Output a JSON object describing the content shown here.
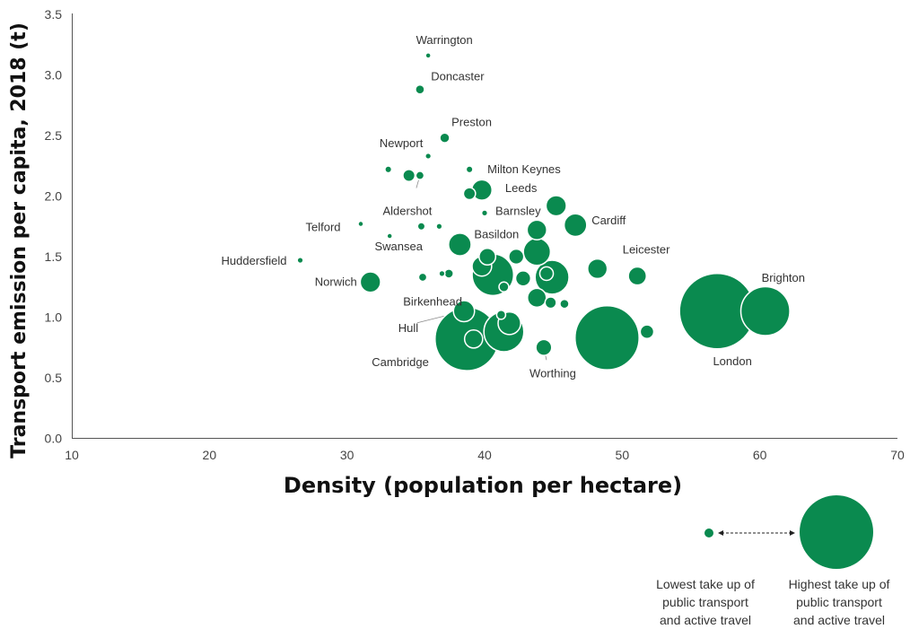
{
  "chart_data": {
    "type": "scatter",
    "title": "",
    "xlabel": "Density (population per hectare)",
    "ylabel": "Transport emission per capita, 2018 (t)",
    "xlim": [
      10,
      70
    ],
    "ylim": [
      0,
      3.5
    ],
    "x_ticks": [
      "10",
      "20",
      "30",
      "40",
      "50",
      "60",
      "70"
    ],
    "y_ticks": [
      "0.0",
      "0.5",
      "1.0",
      "1.5",
      "2.0",
      "2.5",
      "3.0",
      "3.5"
    ],
    "grid": false,
    "bubble_color": "#0a8a4f",
    "size_meaning": "take up of public transport and active travel (relative)",
    "points": [
      {
        "label": "Warrington",
        "x": 35.9,
        "y": 3.16,
        "size": 0.05
      },
      {
        "label": "Doncaster",
        "x": 35.3,
        "y": 2.88,
        "size": 0.12
      },
      {
        "label": "Preston",
        "x": 37.1,
        "y": 2.48,
        "size": 0.13
      },
      {
        "label": "Newport",
        "x": 35.9,
        "y": 2.33,
        "size": 0.08
      },
      {
        "label": "",
        "x": 33.0,
        "y": 2.22,
        "size": 0.09
      },
      {
        "label": "",
        "x": 34.5,
        "y": 2.17,
        "size": 0.16
      },
      {
        "label": "Aldershot",
        "x": 35.3,
        "y": 2.17,
        "size": 0.11
      },
      {
        "label": "Milton Keynes",
        "x": 38.9,
        "y": 2.22,
        "size": 0.09
      },
      {
        "label": "",
        "x": 38.9,
        "y": 2.02,
        "size": 0.16
      },
      {
        "label": "Leeds",
        "x": 39.8,
        "y": 2.05,
        "size": 0.27
      },
      {
        "label": "Barnsley",
        "x": 40.0,
        "y": 1.86,
        "size": 0.08
      },
      {
        "label": "",
        "x": 45.2,
        "y": 1.92,
        "size": 0.27
      },
      {
        "label": "Cardiff",
        "x": 46.6,
        "y": 1.76,
        "size": 0.3
      },
      {
        "label": "Telford",
        "x": 31.0,
        "y": 1.77,
        "size": 0.04
      },
      {
        "label": "Swansea",
        "x": 33.1,
        "y": 1.67,
        "size": 0.05
      },
      {
        "label": "",
        "x": 35.4,
        "y": 1.75,
        "size": 0.1
      },
      {
        "label": "",
        "x": 36.7,
        "y": 1.75,
        "size": 0.08
      },
      {
        "label": "Basildon",
        "x": 38.2,
        "y": 1.6,
        "size": 0.3
      },
      {
        "label": "",
        "x": 43.8,
        "y": 1.72,
        "size": 0.26
      },
      {
        "label": "",
        "x": 43.8,
        "y": 1.54,
        "size": 0.36
      },
      {
        "label": "",
        "x": 40.2,
        "y": 1.5,
        "size": 0.22
      },
      {
        "label": "",
        "x": 42.3,
        "y": 1.5,
        "size": 0.2
      },
      {
        "label": "",
        "x": 44.9,
        "y": 1.33,
        "size": 0.45
      },
      {
        "label": "Leicester",
        "x": 48.2,
        "y": 1.4,
        "size": 0.26
      },
      {
        "label": "",
        "x": 51.1,
        "y": 1.34,
        "size": 0.24
      },
      {
        "label": "Huddersfield",
        "x": 26.6,
        "y": 1.47,
        "size": 0.08
      },
      {
        "label": "Norwich",
        "x": 31.7,
        "y": 1.29,
        "size": 0.27
      },
      {
        "label": "",
        "x": 35.5,
        "y": 1.33,
        "size": 0.11
      },
      {
        "label": "",
        "x": 36.9,
        "y": 1.36,
        "size": 0.08
      },
      {
        "label": "",
        "x": 37.4,
        "y": 1.36,
        "size": 0.12
      },
      {
        "label": "",
        "x": 39.8,
        "y": 1.42,
        "size": 0.26
      },
      {
        "label": "Birkenhead",
        "x": 40.6,
        "y": 1.35,
        "size": 0.55
      },
      {
        "label": "",
        "x": 41.4,
        "y": 1.25,
        "size": 0.13
      },
      {
        "label": "",
        "x": 42.8,
        "y": 1.32,
        "size": 0.2
      },
      {
        "label": "",
        "x": 44.5,
        "y": 1.36,
        "size": 0.18
      },
      {
        "label": "",
        "x": 43.8,
        "y": 1.16,
        "size": 0.25
      },
      {
        "label": "",
        "x": 44.8,
        "y": 1.12,
        "size": 0.15
      },
      {
        "label": "",
        "x": 45.8,
        "y": 1.11,
        "size": 0.12
      },
      {
        "label": "Hull",
        "x": 38.5,
        "y": 1.05,
        "size": 0.28
      },
      {
        "label": "",
        "x": 41.2,
        "y": 1.02,
        "size": 0.12
      },
      {
        "label": "",
        "x": 41.4,
        "y": 0.88,
        "size": 0.53
      },
      {
        "label": "",
        "x": 41.8,
        "y": 0.95,
        "size": 0.3
      },
      {
        "label": "Cambridge",
        "x": 38.7,
        "y": 0.82,
        "size": 0.84
      },
      {
        "label": "",
        "x": 39.2,
        "y": 0.82,
        "size": 0.24
      },
      {
        "label": "Worthing",
        "x": 44.3,
        "y": 0.75,
        "size": 0.21
      },
      {
        "label": "",
        "x": 48.9,
        "y": 0.83,
        "size": 0.85
      },
      {
        "label": "",
        "x": 51.8,
        "y": 0.88,
        "size": 0.18
      },
      {
        "label": "London",
        "x": 56.9,
        "y": 1.05,
        "size": 1.0
      },
      {
        "label": "Brighton",
        "x": 60.4,
        "y": 1.05,
        "size": 0.65
      }
    ],
    "legend": {
      "low_label_line1": "Lowest take up of",
      "low_label_line2": "public transport",
      "low_label_line3": "and active travel",
      "high_label_line1": "Highest take up of",
      "high_label_line2": "public transport",
      "high_label_line3": "and active travel"
    }
  }
}
